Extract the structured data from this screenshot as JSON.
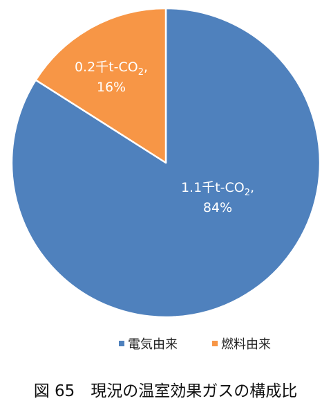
{
  "chart_data": {
    "type": "pie",
    "slices": [
      {
        "name": "電気由来",
        "value": 84,
        "amount": "1.1",
        "color": "#4F81BD"
      },
      {
        "name": "燃料由来",
        "value": 16,
        "amount": "0.2",
        "color": "#F79646"
      }
    ],
    "unit_prefix": "千t-CO",
    "unit_subscript": "2",
    "start": "12 o'clock, clockwise",
    "legend": "bottom"
  },
  "caption": "図 65　現況の温室効果ガスの構成比"
}
